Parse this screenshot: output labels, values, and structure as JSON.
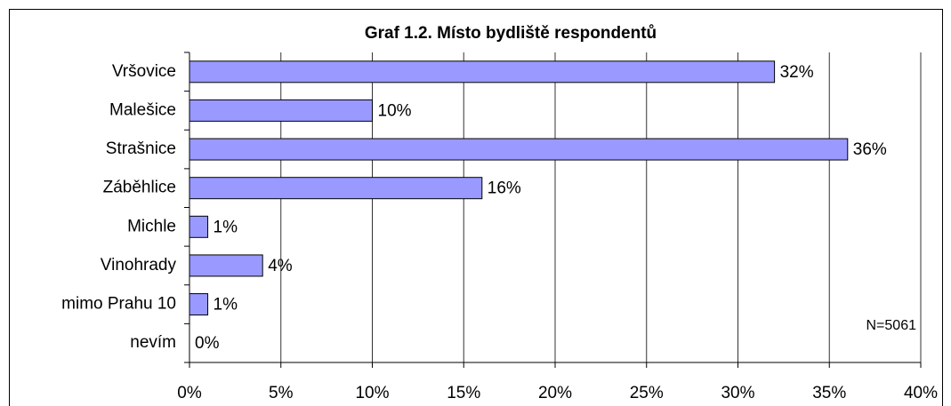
{
  "chart_data": {
    "type": "bar",
    "orientation": "horizontal",
    "title": "Graf 1.2. Místo bydliště respondentů",
    "categories": [
      "Vršovice",
      "Malešice",
      "Strašnice",
      "Záběhlice",
      "Michle",
      "Vinohrady",
      "mimo Prahu 10",
      "nevím"
    ],
    "values": [
      32,
      10,
      36,
      16,
      1,
      4,
      1,
      0
    ],
    "value_labels": [
      "32%",
      "10%",
      "36%",
      "16%",
      "1%",
      "4%",
      "1%",
      "0%"
    ],
    "color": "#9999ff",
    "xlim": [
      0,
      40
    ],
    "xticks": [
      {
        "value": 0,
        "label": "0%"
      },
      {
        "value": 5,
        "label": "5%"
      },
      {
        "value": 10,
        "label": "10%"
      },
      {
        "value": 15,
        "label": "15%"
      },
      {
        "value": 20,
        "label": "20%"
      },
      {
        "value": 25,
        "label": "25%"
      },
      {
        "value": 30,
        "label": "30%"
      },
      {
        "value": 35,
        "label": "35%"
      },
      {
        "value": 40,
        "label": "40%"
      }
    ],
    "grid": true,
    "annotation": "N=5061"
  }
}
